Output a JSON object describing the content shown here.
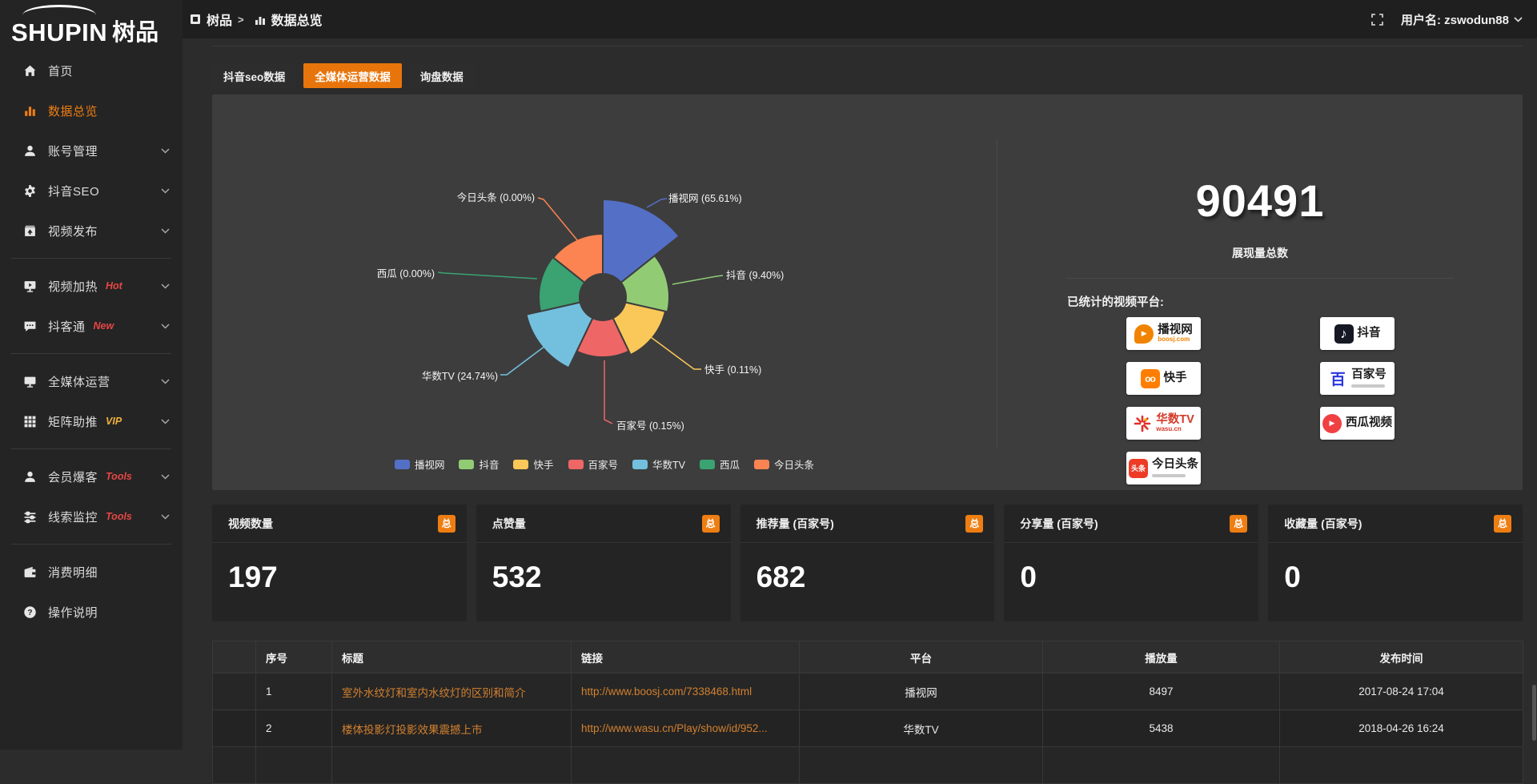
{
  "logo": {
    "text": "SHUPIN",
    "suffix": "树品"
  },
  "breadcrumb": {
    "root": "树品",
    "current": "数据总览"
  },
  "topbar": {
    "user_label": "用户名: zswodun88"
  },
  "tabs": [
    {
      "key": "douyin-seo-data",
      "label": "抖音seo数据",
      "active": false
    },
    {
      "key": "all-media-data",
      "label": "全媒体运营数据",
      "active": true
    },
    {
      "key": "inquiry-data",
      "label": "询盘数据",
      "active": false
    }
  ],
  "sidebar": {
    "groups": [
      [
        {
          "key": "home",
          "label": "首页",
          "icon": "home"
        },
        {
          "key": "data-overview",
          "label": "数据总览",
          "icon": "chart",
          "active": true
        },
        {
          "key": "account-manage",
          "label": "账号管理",
          "icon": "user",
          "chevron": true
        },
        {
          "key": "douyin-seo",
          "label": "抖音SEO",
          "icon": "gear",
          "chevron": true
        },
        {
          "key": "video-publish",
          "label": "视频发布",
          "icon": "publish",
          "chevron": true
        }
      ],
      [
        {
          "key": "video-heat",
          "label": "视频加热",
          "icon": "monitor-play",
          "badge": "Hot",
          "badge_color": "#e84545",
          "chevron": true
        },
        {
          "key": "douketong",
          "label": "抖客通",
          "icon": "chat",
          "badge": "New",
          "badge_color": "#e84545",
          "chevron": true
        }
      ],
      [
        {
          "key": "all-media-ops",
          "label": "全媒体运营",
          "icon": "monitor",
          "chevron": true
        },
        {
          "key": "matrix-boost",
          "label": "矩阵助推",
          "icon": "grid",
          "badge": "VIP",
          "badge_color": "#efb041",
          "chevron": true
        }
      ],
      [
        {
          "key": "member-baoke",
          "label": "会员爆客",
          "icon": "user2",
          "badge": "Tools",
          "badge_color": "#e84545",
          "chevron": true
        },
        {
          "key": "lead-monitor",
          "label": "线索监控",
          "icon": "sliders",
          "badge": "Tools",
          "badge_color": "#e84545",
          "chevron": true
        }
      ],
      [
        {
          "key": "consume-detail",
          "label": "消费明细",
          "icon": "wallet"
        },
        {
          "key": "instructions",
          "label": "操作说明",
          "icon": "help"
        }
      ]
    ]
  },
  "chart_data": {
    "type": "pie",
    "rose": true,
    "legend_position": "bottom",
    "items": [
      {
        "name": "播视网",
        "value": 65.61,
        "pct_label": "65.61%",
        "color": "#5470c6",
        "radius": 122
      },
      {
        "name": "抖音",
        "value": 9.4,
        "pct_label": "9.40%",
        "color": "#91cc75",
        "radius": 83
      },
      {
        "name": "快手",
        "value": 0.11,
        "pct_label": "0.11%",
        "color": "#fac858",
        "radius": 80
      },
      {
        "name": "百家号",
        "value": 0.15,
        "pct_label": "0.15%",
        "color": "#ee6666",
        "radius": 75
      },
      {
        "name": "华数TV",
        "value": 24.74,
        "pct_label": "24.74%",
        "color": "#73c0de",
        "radius": 98
      },
      {
        "name": "西瓜",
        "value": 0.0,
        "pct_label": "0.00%",
        "color": "#3ba272",
        "radius": 80
      },
      {
        "name": "今日头条",
        "value": 0.0,
        "pct_label": "0.00%",
        "color": "#fc8452",
        "radius": 79
      }
    ]
  },
  "summary": {
    "total": "90491",
    "total_label": "展现量总数",
    "platforms_label": "已统计的视频平台:",
    "badges_left": [
      {
        "key": "boosj",
        "name": "播视网",
        "sub": "boosj.com",
        "sub_color": "#f08300",
        "icon": "boosj",
        "icon_glyph": "▶"
      },
      {
        "key": "kuaishou",
        "name": "快手",
        "icon": "kuaishou",
        "icon_glyph": "oo"
      },
      {
        "key": "wasu",
        "name": "华数TV",
        "name_color": "#d43a28",
        "sub": "wasu.cn",
        "sub_color": "#d43a28",
        "icon": "wasu"
      },
      {
        "key": "toutiao",
        "name": "今日头条",
        "icon": "toutiao",
        "icon_glyph": "头条",
        "sub_bar": true
      }
    ],
    "badges_right": [
      {
        "key": "douyin",
        "name": "抖音",
        "icon": "douyin",
        "icon_glyph": "♪"
      },
      {
        "key": "baijiahao",
        "name": "百家号",
        "icon": "baijia",
        "icon_glyph": "百",
        "sub_bar": true
      },
      {
        "key": "xigua",
        "name": "西瓜视频",
        "icon": "xigua",
        "icon_glyph": "▶"
      }
    ]
  },
  "stat_cards": [
    {
      "title": "视频数量",
      "badge": "总",
      "value": "197"
    },
    {
      "title": "点赞量",
      "badge": "总",
      "value": "532"
    },
    {
      "title": "推荐量 (百家号)",
      "badge": "总",
      "value": "682"
    },
    {
      "title": "分享量 (百家号)",
      "badge": "总",
      "value": "0"
    },
    {
      "title": "收藏量 (百家号)",
      "badge": "总",
      "value": "0"
    }
  ],
  "table": {
    "headers": [
      "序号",
      "标题",
      "链接",
      "平台",
      "播放量",
      "发布时间"
    ],
    "rows": [
      {
        "no": "1",
        "title": "室外水纹灯和室内水纹灯的区别和简介",
        "link": "http://www.boosj.com/7338468.html",
        "platform": "播视网",
        "plays": "8497",
        "time": "2017-08-24 17:04"
      },
      {
        "no": "2",
        "title": "楼体投影灯投影效果震撼上市",
        "link": "http://www.wasu.cn/Play/show/id/952...",
        "platform": "华数TV",
        "plays": "5438",
        "time": "2018-04-26 16:24"
      }
    ],
    "partial_third_row": true
  }
}
